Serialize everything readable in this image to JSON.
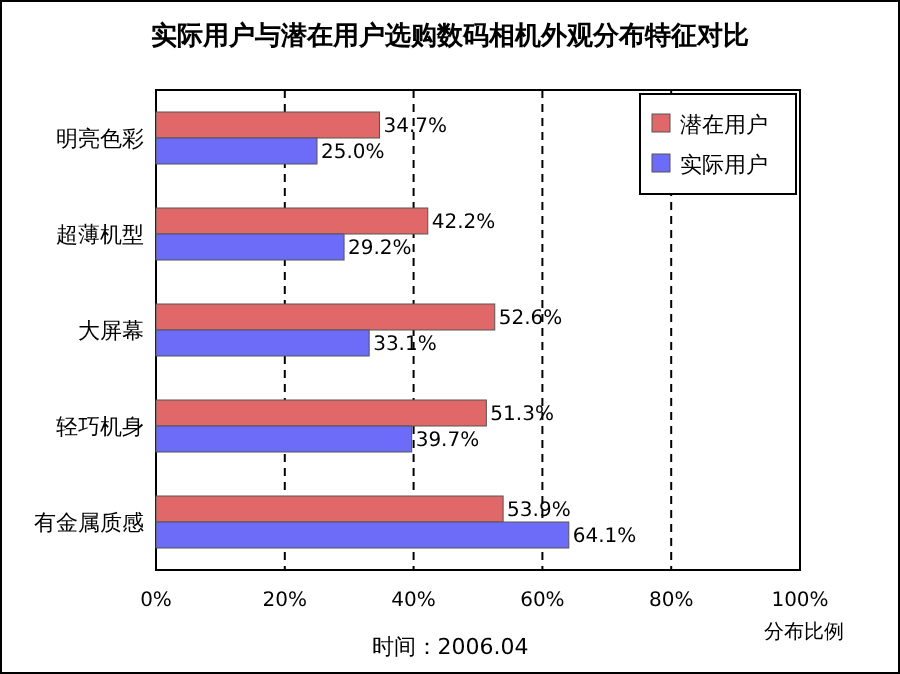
{
  "chart_data": {
    "type": "bar",
    "orientation": "horizontal",
    "title": "实际用户与潜在用户选购数码相机外观分布特征对比",
    "xlabel": "分布比例",
    "categories": [
      "明亮色彩",
      "超薄机型",
      "大屏幕",
      "轻巧机身",
      "有金属质感"
    ],
    "series": [
      {
        "name": "潜在用户",
        "color": "#e06868",
        "values": [
          34.7,
          42.2,
          52.6,
          51.3,
          53.9
        ],
        "value_labels": [
          "34.7%",
          "42.2%",
          "52.6%",
          "51.3%",
          "53.9%"
        ]
      },
      {
        "name": "实际用户",
        "color": "#6c6cf8",
        "values": [
          25.0,
          29.2,
          33.1,
          39.7,
          64.1
        ],
        "value_labels": [
          "25.0%",
          "29.2%",
          "33.1%",
          "39.7%",
          "64.1%"
        ]
      }
    ],
    "xlim": [
      0,
      100
    ],
    "xticks": [
      {
        "value": 0,
        "label": "0%"
      },
      {
        "value": 20,
        "label": "20%"
      },
      {
        "value": 40,
        "label": "40%"
      },
      {
        "value": 60,
        "label": "60%"
      },
      {
        "value": 80,
        "label": "80%"
      },
      {
        "value": 100,
        "label": "100%"
      }
    ],
    "grid": "x",
    "legend": "top right",
    "annotations": [
      "时间：2006.04"
    ]
  }
}
